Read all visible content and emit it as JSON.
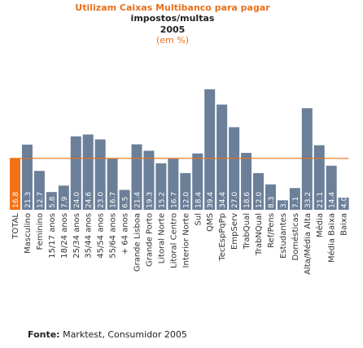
{
  "chart_data": {
    "type": "bar",
    "title_lines": [
      "Utilizam Caixas Multibanco para pagar",
      "impostos/multas"
    ],
    "year": "2005",
    "subtitle": "(em %)",
    "categories": [
      "TOTAL",
      "Masculino",
      "Feminino",
      "15/17 anos",
      "18/24 anos",
      "25/34 anos",
      "35/44 anos",
      "45/54 anos",
      "55/64 anos",
      "+ 64 anos",
      "Grande Lisboa",
      "Grande Porto",
      "Litoral Norte",
      "Litoral Centro",
      "Interior Norte",
      "Sul",
      "QMS",
      "TecEspPqPp",
      "EmpServ",
      "TrabQual",
      "TrabNQual",
      "Ref/Pens",
      "Estudantes",
      "Domésticas",
      "Alta/Média Alta",
      "Média",
      "Média Baixa",
      "Baixa"
    ],
    "values": [
      16.8,
      21.3,
      12.7,
      5.8,
      7.9,
      24.0,
      24.6,
      23.0,
      16.7,
      6.5,
      21.4,
      19.3,
      15.2,
      16.7,
      12.0,
      18.4,
      39.4,
      34.4,
      27.0,
      18.6,
      12.0,
      8.3,
      3.1,
      7.1,
      33.2,
      21.1,
      14.4,
      4.0
    ],
    "value_labels": [
      "16.8",
      "21.3",
      "12.7",
      "5.8",
      "7.9",
      "24.0",
      "24.6",
      "23.0",
      "16.7",
      "6.5",
      "21.4",
      "19.3",
      "15.2",
      "16.7",
      "12.0",
      "18.4",
      "39.4",
      "34.4",
      "27.0",
      "18.6",
      "12.0",
      "8.3",
      "3.1",
      "7.1",
      "33.2",
      "21.1",
      "14.4",
      "4.0"
    ],
    "highlight_index": 0,
    "reference_line": 16.8,
    "ylim": [
      0,
      42
    ],
    "colors": {
      "bar": "#6b7f99",
      "highlight": "#f47216",
      "reference": "#e8701a",
      "title": "#e8701a"
    }
  },
  "source": {
    "label": "Fonte:",
    "text": " Marktest, Consumidor 2005"
  }
}
